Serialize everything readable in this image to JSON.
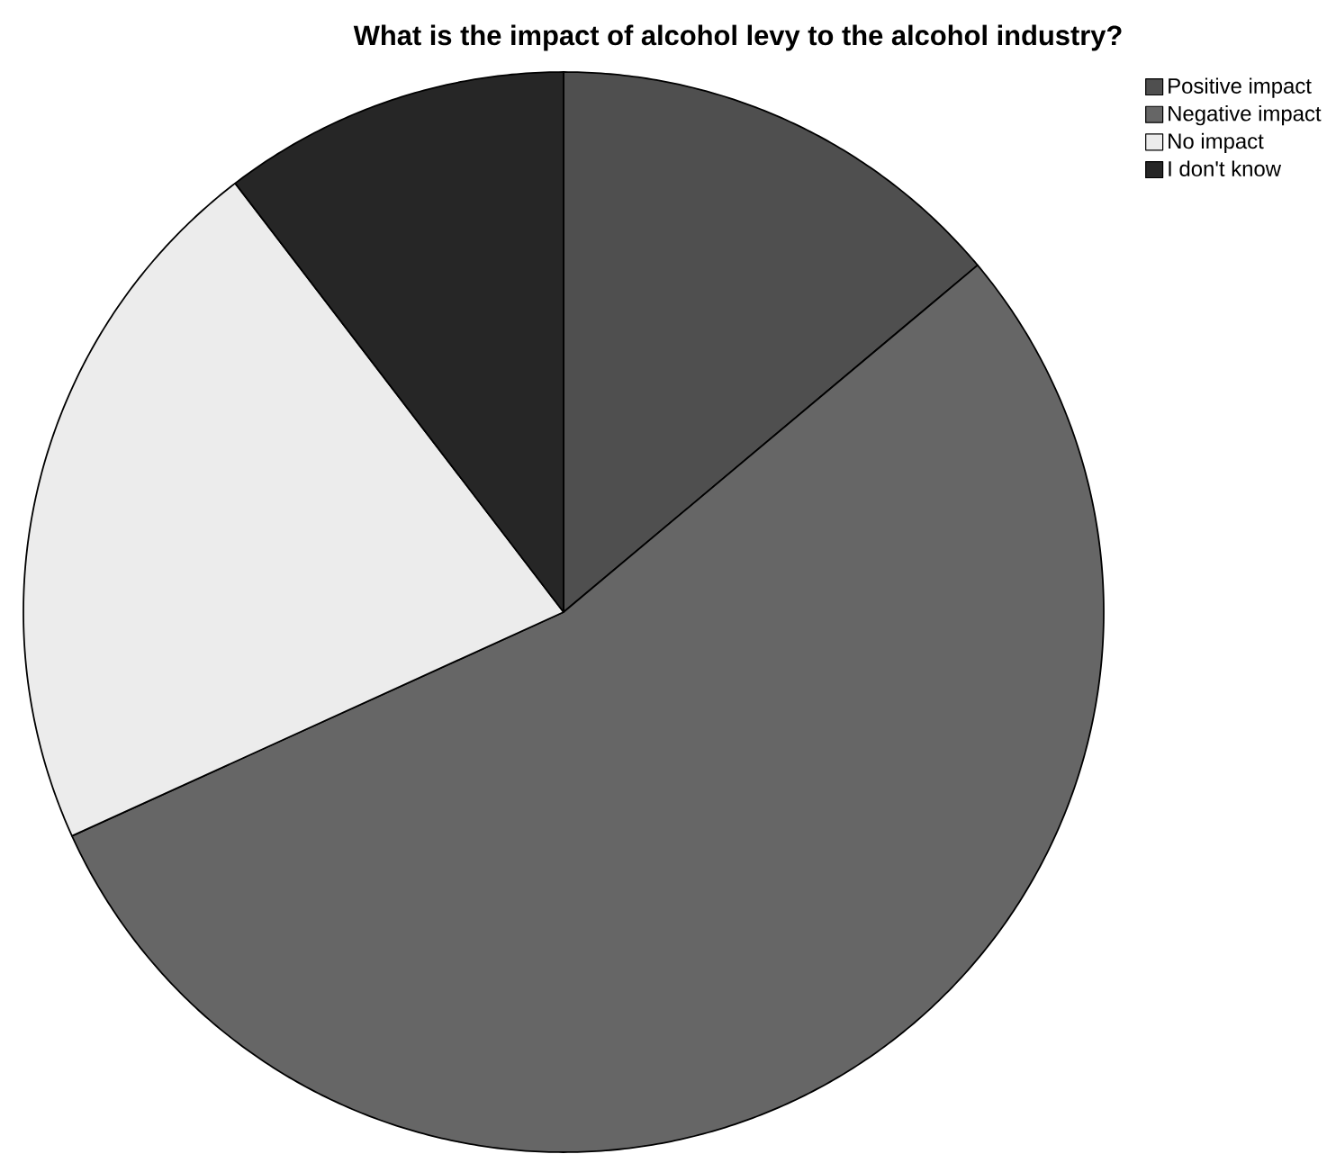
{
  "chart_data": {
    "type": "pie",
    "title": "What is the impact of alcohol levy to the alcohol industry?",
    "categories": [
      "Positive impact",
      "Negative impact",
      "No impact",
      "I don't know"
    ],
    "values": [
      13.9,
      54.3,
      21.4,
      10.4
    ],
    "colors": [
      "#4f4f4f",
      "#666666",
      "#ececec",
      "#262626"
    ],
    "legend": "top right"
  }
}
